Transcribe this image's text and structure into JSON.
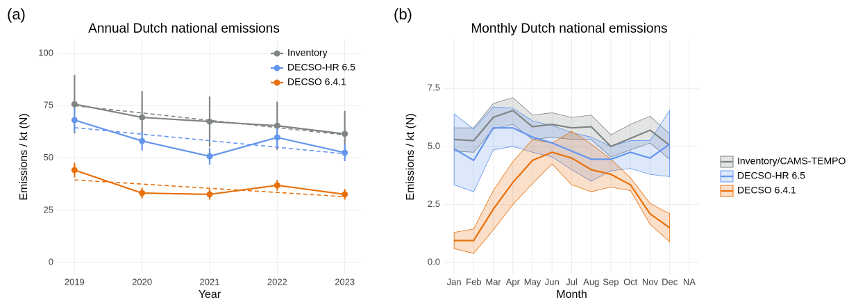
{
  "chart_data": [
    {
      "type": "line",
      "label": "(a)",
      "title": "Annual Dutch national emissions",
      "xlabel": "Year",
      "ylabel": "Emissions / kt (N)",
      "x": [
        2019,
        2020,
        2021,
        2022,
        2023
      ],
      "xlim": [
        2018.75,
        2023.25
      ],
      "xticks": [
        2019,
        2020,
        2021,
        2022,
        2023
      ],
      "ylim": [
        -5.6,
        106.6
      ],
      "yticks": [
        0,
        25,
        50,
        75,
        100
      ],
      "grid": true,
      "legend": "top-right",
      "series": [
        {
          "name": "Inventory",
          "color": "#7f8584",
          "values": [
            75.7,
            69.4,
            67.4,
            65.4,
            61.5
          ],
          "errors": [
            14,
            12.5,
            12,
            11.5,
            11
          ],
          "trend": [
            75,
            61
          ]
        },
        {
          "name": "DECSO-HR 6.5",
          "color": "#6495ed",
          "values": [
            68.1,
            58.1,
            50.8,
            59.8,
            52.5
          ],
          "errors": [
            5.5,
            4.5,
            4,
            4.5,
            4
          ],
          "trend": [
            64.5,
            52
          ]
        },
        {
          "name": "DECSO 6.4.1",
          "color": "#e8700c",
          "values": [
            44.2,
            33.2,
            32.6,
            36.9,
            32.6
          ],
          "errors": [
            3.5,
            2.5,
            2.5,
            2.5,
            2.5
          ],
          "trend": [
            39.5,
            31.5
          ]
        }
      ]
    },
    {
      "type": "band",
      "label": "(b)",
      "title": "Monthly Dutch national emissions",
      "xlabel": "Month",
      "ylabel": "Emissions / kt (N)",
      "categories": [
        "Jan",
        "Feb",
        "Mar",
        "Apr",
        "May",
        "Jun",
        "Jul",
        "Aug",
        "Sep",
        "Oct",
        "Nov",
        "Dec",
        "NA"
      ],
      "ylim": [
        -0.5,
        9.6
      ],
      "yticks": [
        {
          "value": 0,
          "label": "0.0"
        },
        {
          "value": 2.5,
          "label": "2.5"
        },
        {
          "value": 5,
          "label": "5.0"
        },
        {
          "value": 7.5,
          "label": "7.5"
        }
      ],
      "grid": true,
      "legend": "right",
      "series": [
        {
          "name": "Inventory/CAMS-TEMPO",
          "color": "#7f8584",
          "values": [
            5.3,
            5.25,
            6.25,
            6.55,
            5.85,
            5.95,
            5.8,
            5.85,
            5.0,
            5.35,
            5.7,
            5.05,
            null
          ],
          "lower": [
            4.8,
            4.75,
            5.75,
            5.95,
            5.3,
            5.4,
            5.3,
            5.3,
            4.55,
            4.85,
            5.15,
            4.45,
            null
          ],
          "upper": [
            5.8,
            5.8,
            6.85,
            7.1,
            6.35,
            6.45,
            6.25,
            6.35,
            5.5,
            5.95,
            6.3,
            5.55,
            null
          ]
        },
        {
          "name": "DECSO-HR 6.5",
          "color": "#6495ed",
          "values": [
            4.9,
            4.4,
            5.8,
            5.8,
            5.4,
            5.15,
            4.8,
            4.45,
            4.45,
            4.75,
            4.5,
            5.1,
            null
          ],
          "lower": [
            3.35,
            3.05,
            4.85,
            5.0,
            4.75,
            4.55,
            4.0,
            3.5,
            3.95,
            4.05,
            3.8,
            3.7,
            null
          ],
          "upper": [
            6.4,
            5.75,
            6.7,
            6.65,
            6.1,
            5.9,
            5.6,
            5.4,
            5.0,
            5.25,
            5.25,
            6.55,
            null
          ]
        },
        {
          "name": "DECSO 6.4.1",
          "color": "#e8700c",
          "values": [
            0.95,
            0.95,
            2.3,
            3.45,
            4.4,
            4.75,
            4.5,
            4.0,
            3.8,
            3.35,
            2.1,
            1.5,
            null
          ],
          "lower": [
            0.6,
            0.4,
            1.4,
            2.5,
            3.4,
            4.25,
            3.35,
            3.05,
            3.25,
            3.1,
            1.65,
            0.9,
            null
          ],
          "upper": [
            1.3,
            1.45,
            3.1,
            4.35,
            5.3,
            5.15,
            5.65,
            5.1,
            4.45,
            3.65,
            2.55,
            2.1,
            null
          ]
        }
      ]
    }
  ]
}
